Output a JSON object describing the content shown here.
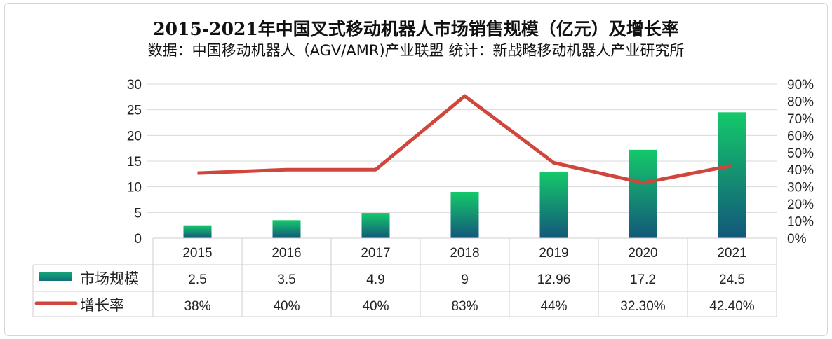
{
  "chart_data": {
    "type": "bar",
    "title": "2015-2021年中国叉式移动机器人市场销售规模（亿元）及增长率",
    "subtitle": "数据：中国移动机器人（AGV/AMR)产业联盟   统计：新战略移动机器人产业研究所",
    "categories": [
      "2015",
      "2016",
      "2017",
      "2018",
      "2019",
      "2020",
      "2021"
    ],
    "series": [
      {
        "name": "市场规模",
        "type": "bar",
        "axis": "left",
        "values": [
          2.5,
          3.5,
          4.9,
          9,
          12.96,
          17.2,
          24.5
        ],
        "labels": [
          "2.5",
          "3.5",
          "4.9",
          "9",
          "12.96",
          "17.2",
          "24.5"
        ],
        "color_top": "#14c96a",
        "color_bottom": "#13577a"
      },
      {
        "name": "增长率",
        "type": "line",
        "axis": "right",
        "values": [
          38,
          40,
          40,
          83,
          44,
          32.3,
          42.4
        ],
        "labels": [
          "38%",
          "40%",
          "40%",
          "83%",
          "44%",
          "32.30%",
          "42.40%"
        ],
        "color": "#d0463c"
      }
    ],
    "ylim": [
      0,
      30
    ],
    "yticks": [
      "0",
      "5",
      "10",
      "15",
      "20",
      "25",
      "30"
    ],
    "y2lim": [
      0,
      90
    ],
    "y2ticks": [
      "0%",
      "10%",
      "20%",
      "30%",
      "40%",
      "50%",
      "60%",
      "70%",
      "80%",
      "90%"
    ],
    "grid": true,
    "legend": "data-table-left"
  }
}
